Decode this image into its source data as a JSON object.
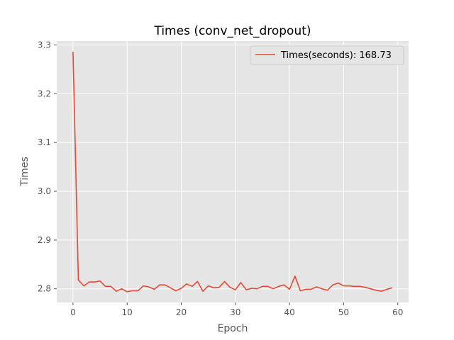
{
  "chart_data": {
    "type": "line",
    "title": "Times (conv_net_dropout)",
    "xlabel": "Epoch",
    "ylabel": "Times",
    "xlim": [
      -3,
      62
    ],
    "ylim": [
      2.772,
      3.308
    ],
    "xticks": [
      0,
      10,
      20,
      30,
      40,
      50,
      60
    ],
    "yticks": [
      2.8,
      2.9,
      3.0,
      3.1,
      3.2,
      3.3
    ],
    "ytick_labels": [
      "2.8",
      "2.9",
      "3.0",
      "3.1",
      "3.2",
      "3.3"
    ],
    "grid": true,
    "legend_position": "top-right",
    "series": [
      {
        "name": "Times(seconds): 168.73",
        "color": "#e24a33",
        "x": [
          0,
          1,
          2,
          3,
          4,
          5,
          6,
          7,
          8,
          9,
          10,
          11,
          12,
          13,
          14,
          15,
          16,
          17,
          18,
          19,
          20,
          21,
          22,
          23,
          24,
          25,
          26,
          27,
          28,
          29,
          30,
          31,
          32,
          33,
          34,
          35,
          36,
          37,
          38,
          39,
          40,
          41,
          42,
          43,
          44,
          45,
          46,
          47,
          48,
          49,
          50,
          51,
          52,
          53,
          54,
          55,
          56,
          57,
          58,
          59
        ],
        "values": [
          3.286,
          2.818,
          2.806,
          2.814,
          2.814,
          2.816,
          2.805,
          2.805,
          2.795,
          2.8,
          2.794,
          2.796,
          2.796,
          2.806,
          2.804,
          2.799,
          2.808,
          2.808,
          2.802,
          2.796,
          2.801,
          2.81,
          2.805,
          2.815,
          2.795,
          2.806,
          2.802,
          2.803,
          2.815,
          2.803,
          2.798,
          2.813,
          2.798,
          2.801,
          2.8,
          2.805,
          2.805,
          2.8,
          2.805,
          2.808,
          2.799,
          2.826,
          2.796,
          2.799,
          2.799,
          2.804,
          2.8,
          2.797,
          2.808,
          2.812,
          2.806,
          2.806,
          2.805,
          2.805,
          2.803,
          2.8,
          2.797,
          2.795,
          2.799,
          2.802
        ]
      }
    ]
  }
}
